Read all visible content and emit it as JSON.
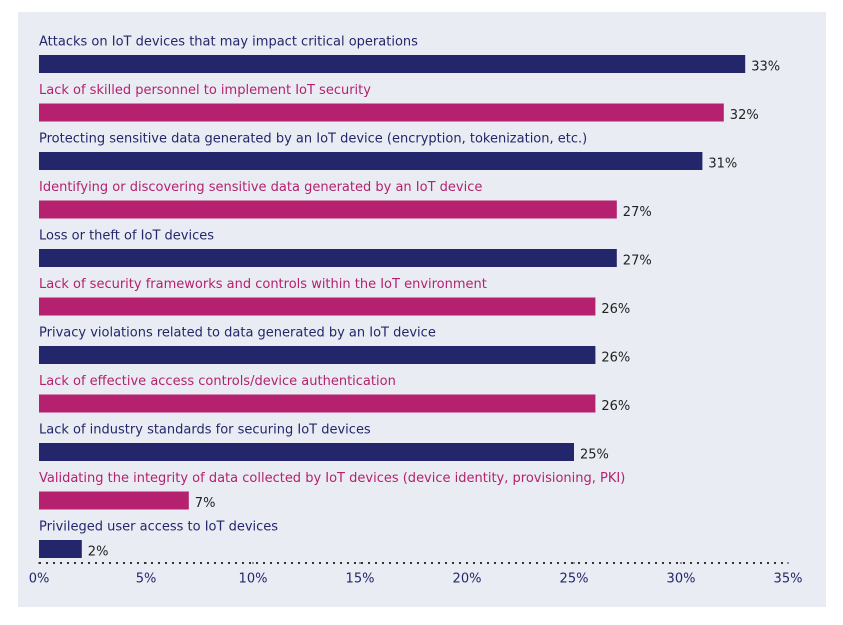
{
  "chart_data": {
    "type": "bar",
    "orientation": "horizontal",
    "categories": [
      "Attacks on IoT devices that may impact critical operations",
      "Lack of skilled personnel to implement IoT security",
      "Protecting sensitive data generated by an IoT device (encryption, tokenization, etc.)",
      "Identifying or discovering sensitive data generated by an IoT device",
      "Loss or theft of IoT devices",
      "Lack of security frameworks and controls within the IoT environment",
      "Privacy violations related to data generated by an IoT device",
      "Lack of effective access controls/device authentication",
      "Lack of industry standards for securing IoT devices",
      "Validating the integrity of data collected by IoT devices (device identity, provisioning, PKI)",
      "Privileged user access to IoT devices"
    ],
    "values": [
      33,
      32,
      31,
      27,
      27,
      26,
      26,
      26,
      25,
      7,
      2
    ],
    "value_labels": [
      "33%",
      "32%",
      "31%",
      "27%",
      "27%",
      "26%",
      "26%",
      "26%",
      "25%",
      "7%",
      "2%"
    ],
    "colors": [
      "#24266b",
      "#b5216f",
      "#24266b",
      "#b5216f",
      "#24266b",
      "#b5216f",
      "#24266b",
      "#b5216f",
      "#24266b",
      "#b5216f",
      "#24266b"
    ],
    "xlim": [
      0,
      35
    ],
    "xticks": [
      {
        "value": 0,
        "label": "0%"
      },
      {
        "value": 5,
        "label": "5%"
      },
      {
        "value": 10,
        "label": "10%"
      },
      {
        "value": 15,
        "label": "15%"
      },
      {
        "value": 20,
        "label": "20%"
      },
      {
        "value": 25,
        "label": "25%"
      },
      {
        "value": 30,
        "label": "30%"
      },
      {
        "value": 35,
        "label": "35%"
      }
    ]
  }
}
